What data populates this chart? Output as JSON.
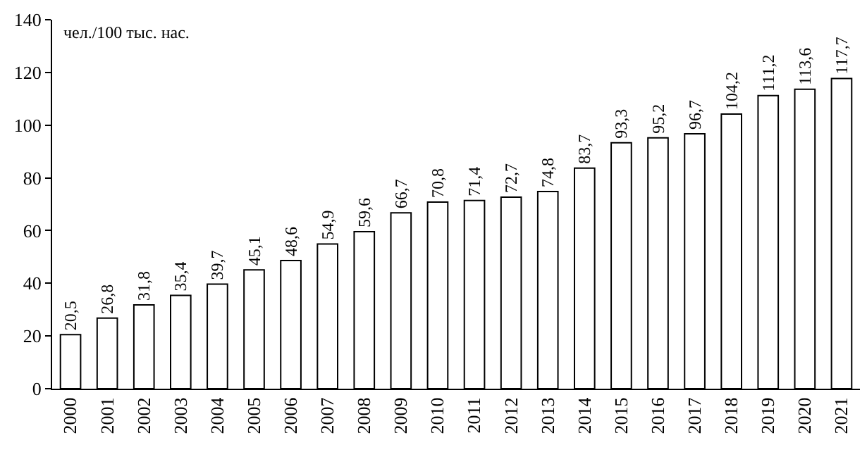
{
  "chart_data": {
    "type": "bar",
    "ylabel": "чел./100 тыс. нас.",
    "categories": [
      "2000",
      "2001",
      "2002",
      "2003",
      "2004",
      "2005",
      "2006",
      "2007",
      "2008",
      "2009",
      "2010",
      "2011",
      "2012",
      "2013",
      "2014",
      "2015",
      "2016",
      "2017",
      "2018",
      "2019",
      "2020",
      "2021"
    ],
    "values": [
      20.5,
      26.8,
      31.8,
      35.4,
      39.7,
      45.1,
      48.6,
      54.9,
      59.6,
      66.7,
      70.8,
      71.4,
      72.7,
      74.8,
      83.7,
      93.3,
      95.2,
      96.7,
      104.2,
      111.2,
      113.6,
      117.7
    ],
    "value_labels": [
      "20,5",
      "26,8",
      "31,8",
      "35,4",
      "39,7",
      "45,1",
      "48,6",
      "54,9",
      "59,6",
      "66,7",
      "70,8",
      "71,4",
      "72,7",
      "74,8",
      "83,7",
      "93,3",
      "95,2",
      "96,7",
      "104,2",
      "111,2",
      "113,6",
      "117,7"
    ],
    "color": "#ffffff",
    "ylim": [
      0,
      140
    ],
    "yticks": [
      0,
      20,
      40,
      60,
      80,
      100,
      120,
      140
    ],
    "legend": false
  }
}
